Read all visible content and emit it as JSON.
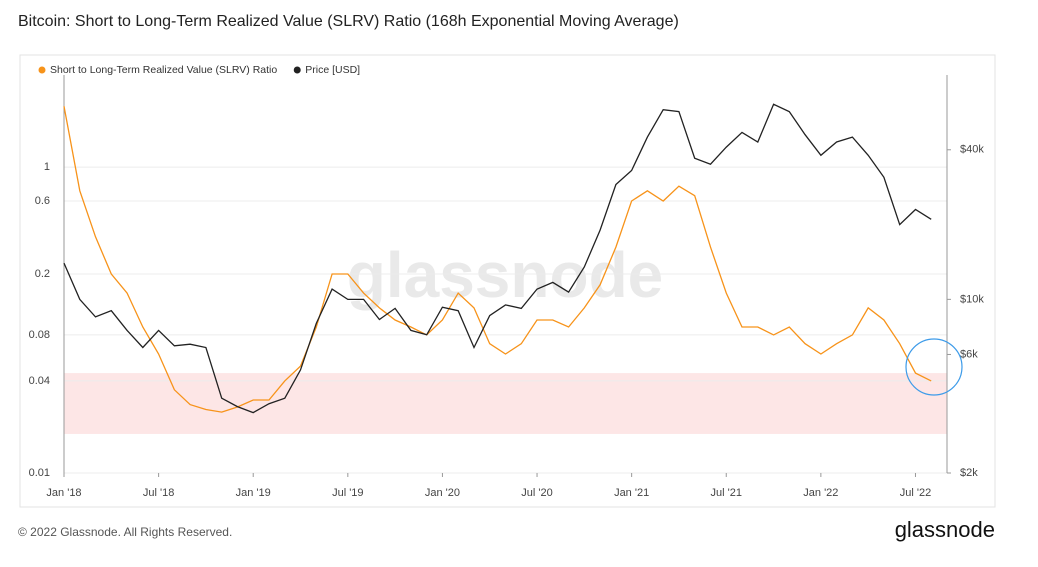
{
  "chart_data": {
    "type": "line",
    "title": "Bitcoin: Short to Long-Term Realized Value (SLRV) Ratio (168h Exponential Moving Average)",
    "x": [
      "2018-01",
      "2018-02",
      "2018-03",
      "2018-04",
      "2018-05",
      "2018-06",
      "2018-07",
      "2018-08",
      "2018-09",
      "2018-10",
      "2018-11",
      "2018-12",
      "2019-01",
      "2019-02",
      "2019-03",
      "2019-04",
      "2019-05",
      "2019-06",
      "2019-07",
      "2019-08",
      "2019-09",
      "2019-10",
      "2019-11",
      "2019-12",
      "2020-01",
      "2020-02",
      "2020-03",
      "2020-04",
      "2020-05",
      "2020-06",
      "2020-07",
      "2020-08",
      "2020-09",
      "2020-10",
      "2020-11",
      "2020-12",
      "2021-01",
      "2021-02",
      "2021-03",
      "2021-04",
      "2021-05",
      "2021-06",
      "2021-07",
      "2021-08",
      "2021-09",
      "2021-10",
      "2021-11",
      "2021-12",
      "2022-01",
      "2022-02",
      "2022-03",
      "2022-04",
      "2022-05",
      "2022-06",
      "2022-07",
      "2022-08"
    ],
    "series": [
      {
        "name": "Short to Long-Term Realized Value (SLRV) Ratio",
        "color": "#f7931a",
        "axis": "y",
        "values": [
          2.5,
          0.7,
          0.35,
          0.2,
          0.15,
          0.09,
          0.06,
          0.035,
          0.028,
          0.026,
          0.025,
          0.027,
          0.03,
          0.03,
          0.04,
          0.05,
          0.09,
          0.2,
          0.2,
          0.15,
          0.12,
          0.1,
          0.09,
          0.08,
          0.1,
          0.15,
          0.12,
          0.07,
          0.06,
          0.07,
          0.1,
          0.1,
          0.09,
          0.12,
          0.17,
          0.3,
          0.6,
          0.7,
          0.6,
          0.75,
          0.65,
          0.3,
          0.15,
          0.09,
          0.09,
          0.08,
          0.09,
          0.07,
          0.06,
          0.07,
          0.08,
          0.12,
          0.1,
          0.07,
          0.045,
          0.04
        ]
      },
      {
        "name": "Price [USD]",
        "color": "#222222",
        "axis": "y2",
        "values": [
          14000,
          10000,
          8500,
          9000,
          7500,
          6400,
          7500,
          6500,
          6600,
          6400,
          4000,
          3700,
          3500,
          3800,
          4000,
          5200,
          8000,
          11000,
          10000,
          10000,
          8300,
          9200,
          7500,
          7200,
          9300,
          9000,
          6400,
          8600,
          9500,
          9200,
          11000,
          11700,
          10700,
          13500,
          19000,
          29000,
          33000,
          45000,
          58000,
          57000,
          37000,
          35000,
          41000,
          47000,
          43000,
          61000,
          57000,
          46000,
          38000,
          43000,
          45000,
          38000,
          31000,
          20000,
          23000,
          21000
        ]
      }
    ],
    "xlim": [
      "2018-01",
      "2022-09"
    ],
    "xticks": [
      {
        "value": "2018-01",
        "label": "Jan '18"
      },
      {
        "value": "2018-07",
        "label": "Jul '18"
      },
      {
        "value": "2019-01",
        "label": "Jan '19"
      },
      {
        "value": "2019-07",
        "label": "Jul '19"
      },
      {
        "value": "2020-01",
        "label": "Jan '20"
      },
      {
        "value": "2020-07",
        "label": "Jul '20"
      },
      {
        "value": "2021-01",
        "label": "Jan '21"
      },
      {
        "value": "2021-07",
        "label": "Jul '21"
      },
      {
        "value": "2022-01",
        "label": "Jan '22"
      },
      {
        "value": "2022-07",
        "label": "Jul '22"
      }
    ],
    "ylim": [
      0.01,
      4
    ],
    "yticks": [
      0.01,
      0.04,
      0.08,
      0.2,
      0.6,
      1
    ],
    "ylog": true,
    "y2lim": [
      2000,
      80000
    ],
    "y2log": true,
    "y2ticks": [
      {
        "value": 2000,
        "label": "$2k"
      },
      {
        "value": 6000,
        "label": "$6k"
      },
      {
        "value": 10000,
        "label": "$10k"
      },
      {
        "value": 40000,
        "label": "$40k"
      }
    ],
    "highlight_range": [
      0.018,
      0.045
    ],
    "highlight_color": "#fde3e3",
    "grid": true,
    "legend": "top-left",
    "watermark": "glassnode",
    "footer": "© 2022 Glassnode. All Rights Reserved.",
    "logo": "glassnode"
  }
}
